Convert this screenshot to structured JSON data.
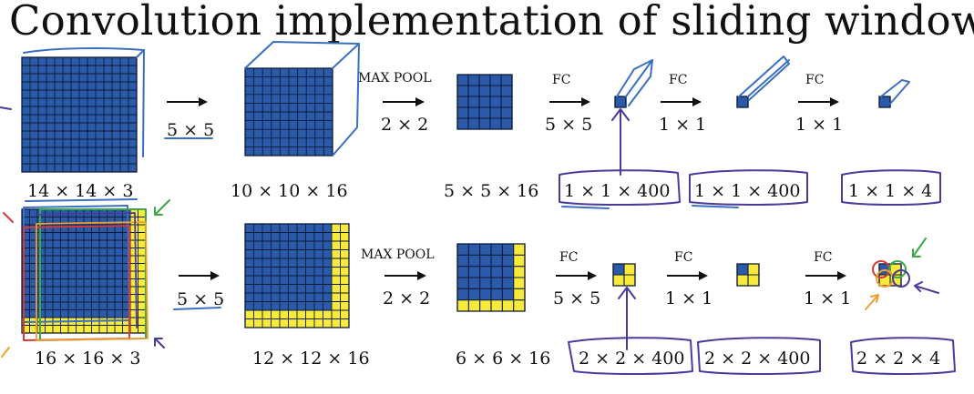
{
  "title": "Convolution implementation of sliding windows",
  "colors": {
    "blue": "#2a5aa8",
    "yellow": "#f7ea3a",
    "grid": "#0d1b3a",
    "ink_blue": "#3b6fc2",
    "ink_purple": "#4a3a9a",
    "ink_red": "#d23b3b",
    "ink_green": "#3aa845",
    "ink_orange": "#f0a030"
  },
  "top_row": {
    "input": "14 × 14 × 3",
    "conv": "5 × 5",
    "conv_out": "10 × 10 × 16",
    "pool_label": "MAX POOL",
    "pool": "2 × 2",
    "pool_out": "5 × 5 × 16",
    "fc1_label": "FC",
    "fc1": "5 × 5",
    "fc1_out": "1 × 1 × 400",
    "fc2_label": "FC",
    "fc2": "1 × 1",
    "fc2_out": "1 × 1 × 400",
    "fc3_label": "FC",
    "fc3": "1 × 1",
    "fc3_out": "1 × 1 × 4"
  },
  "bottom_row": {
    "input": "16 × 16 × 3",
    "conv": "5 × 5",
    "conv_out": "12 × 12 × 16",
    "pool_label": "MAX POOL",
    "pool": "2 × 2",
    "pool_out": "6 × 6 × 16",
    "fc1_label": "FC",
    "fc1": "5 × 5",
    "fc1_out": "2 × 2 × 400",
    "fc2_label": "FC",
    "fc2": "1 × 1",
    "fc2_out": "2 × 2 × 400",
    "fc3_label": "FC",
    "fc3": "1 × 1",
    "fc3_out": "2 × 2 × 4"
  }
}
